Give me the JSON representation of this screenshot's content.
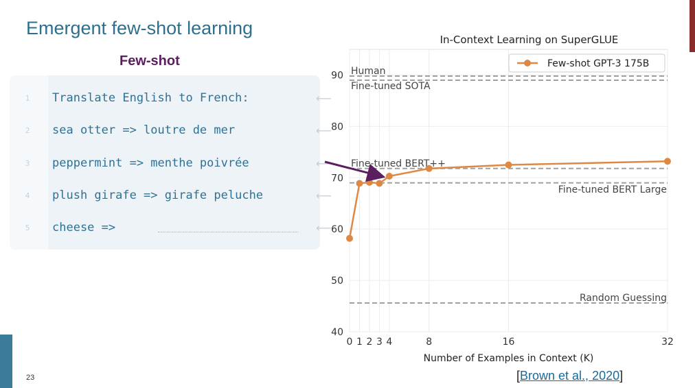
{
  "slide": {
    "title": "Emergent few-shot learning",
    "subtitle": "Few-shot",
    "page_number": "23",
    "citation_open": "[",
    "citation_link": "Brown et al., 2020",
    "citation_close": "]"
  },
  "prompt": {
    "lines": [
      {
        "num": "1",
        "text": "Translate English to French:"
      },
      {
        "num": "2",
        "text": "sea otter => loutre de mer"
      },
      {
        "num": "3",
        "text": "peppermint => menthe poivrée"
      },
      {
        "num": "4",
        "text": "plush girafe => girafe peluche"
      },
      {
        "num": "5",
        "text": "cheese =>"
      }
    ],
    "arrow_glyph": "⟵"
  },
  "colors": {
    "series": "#dd8844",
    "reference": "#a0a0a0",
    "annotation_arrow": "#5b1e5e",
    "title": "#2e6f8e"
  },
  "chart_data": {
    "type": "line",
    "title": "In-Context Learning on SuperGLUE",
    "xlabel": "Number of Examples in Context (K)",
    "ylabel": "",
    "xlim": [
      0,
      32
    ],
    "ylim": [
      40,
      95
    ],
    "xticks": [
      0,
      1,
      2,
      3,
      4,
      8,
      16,
      32
    ],
    "yticks": [
      40,
      50,
      60,
      70,
      80,
      90
    ],
    "grid": true,
    "legend": "top-right",
    "series": [
      {
        "name": "Few-shot GPT-3 175B",
        "x": [
          0,
          1,
          2,
          3,
          4,
          8,
          16,
          32
        ],
        "y": [
          58.2,
          68.9,
          69.1,
          68.9,
          70.3,
          71.8,
          72.5,
          73.2
        ]
      }
    ],
    "reference_lines": [
      {
        "label": "Human",
        "y": 89.8,
        "label_pos": "left-above"
      },
      {
        "label": "Fine-tuned SOTA",
        "y": 89.0,
        "label_pos": "left-below"
      },
      {
        "label": "Fine-tuned BERT++",
        "y": 71.8,
        "label_pos": "left-above"
      },
      {
        "label": "Fine-tuned BERT Large",
        "y": 69.0,
        "label_pos": "right-below"
      },
      {
        "label": "Random Guessing",
        "y": 45.6,
        "label_pos": "right-above"
      }
    ],
    "annotation": {
      "from_prompt_line": 3,
      "to_x": 3.5,
      "to_y": 70.0
    }
  }
}
